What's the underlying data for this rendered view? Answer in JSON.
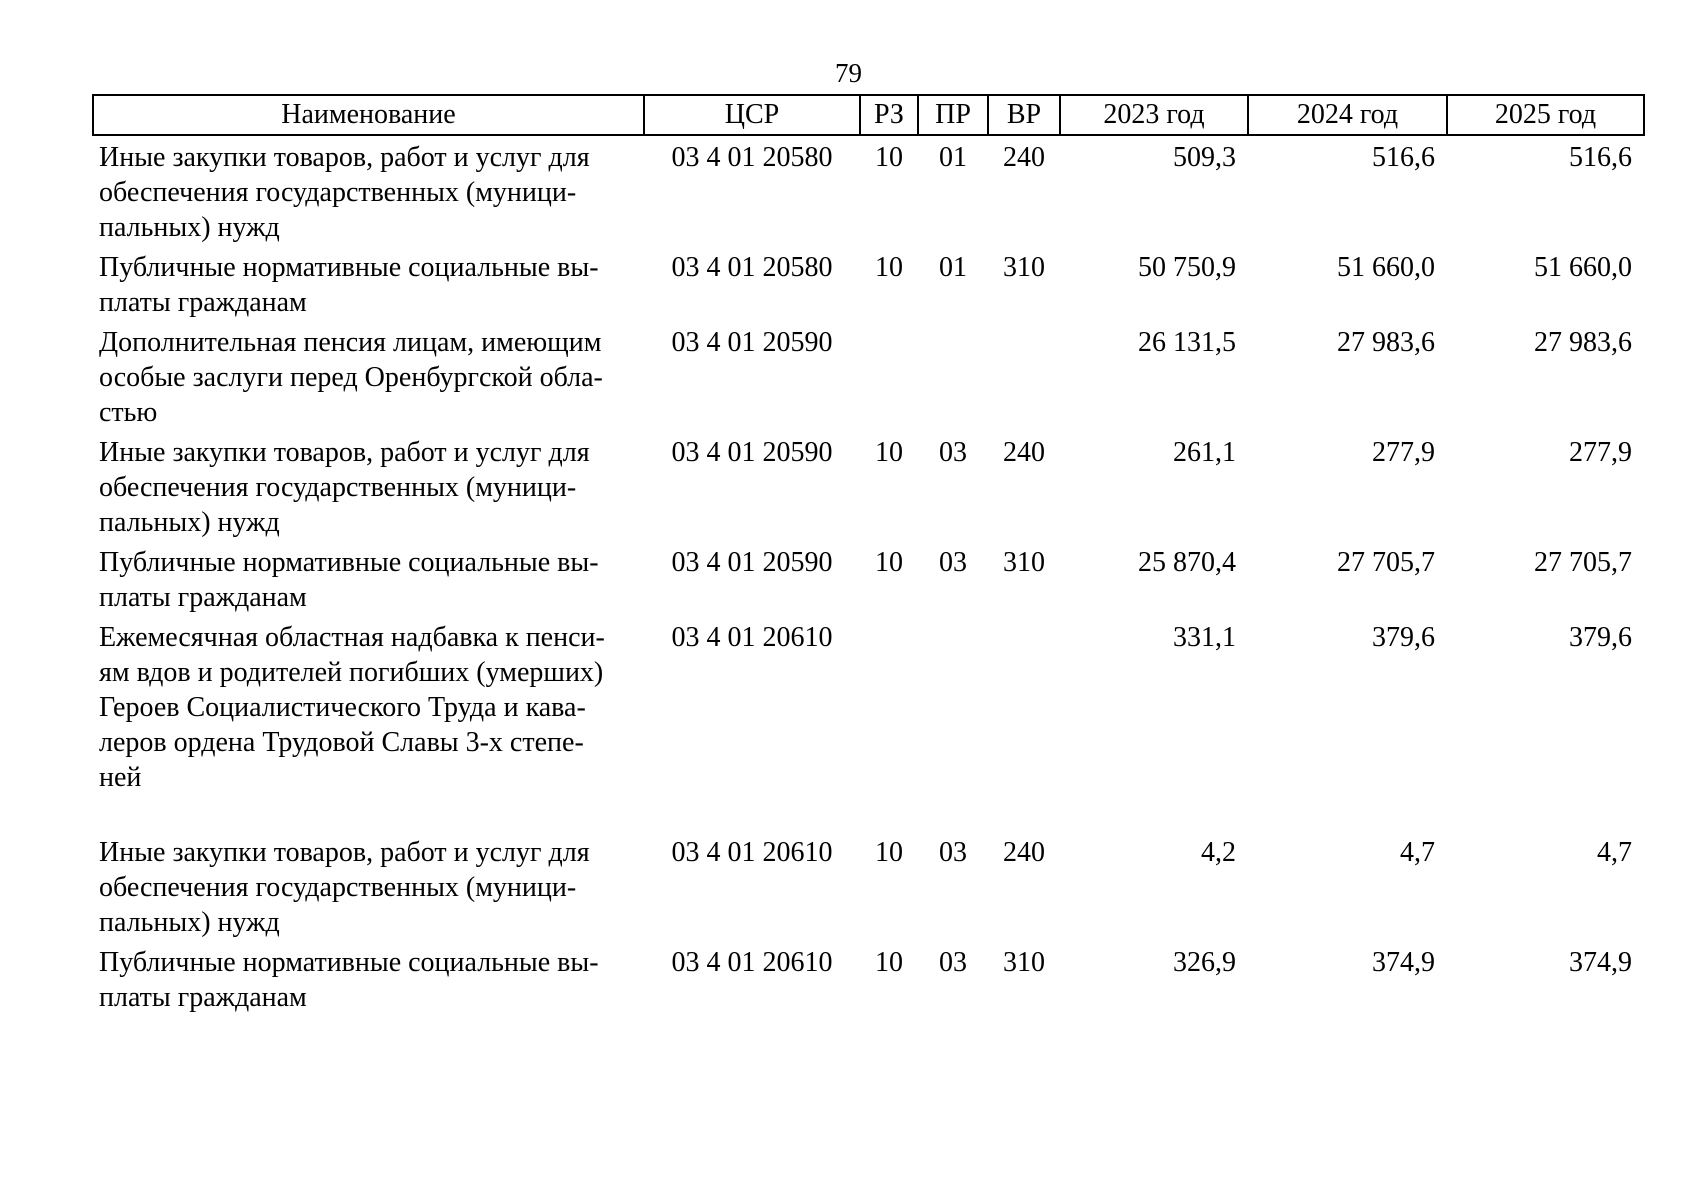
{
  "page": {
    "number": "79"
  },
  "table": {
    "headers": {
      "name": "Наименование",
      "csr": "ЦСР",
      "rz": "РЗ",
      "pr": "ПР",
      "vr": "ВР",
      "y2023": "2023 год",
      "y2024": "2024 год",
      "y2025": "2025 год"
    },
    "rows": [
      {
        "name": "Иные закупки товаров, работ и услуг для\nобеспечения государственных (муници-\nпальных) нужд",
        "csr": "03 4 01 20580",
        "rz": "10",
        "pr": "01",
        "vr": "240",
        "y2023": "509,3",
        "y2024": "516,6",
        "y2025": "516,6"
      },
      {
        "name": "Публичные нормативные социальные вы-\nплаты гражданам",
        "csr": "03 4 01 20580",
        "rz": "10",
        "pr": "01",
        "vr": "310",
        "y2023": "50 750,9",
        "y2024": "51 660,0",
        "y2025": "51 660,0"
      },
      {
        "name": "Дополнительная пенсия лицам, имеющим\nособые заслуги перед Оренбургской обла-\nстью",
        "csr": "03 4 01 20590",
        "rz": "",
        "pr": "",
        "vr": "",
        "y2023": "26 131,5",
        "y2024": "27 983,6",
        "y2025": "27 983,6"
      },
      {
        "name": "Иные закупки товаров, работ и услуг для\nобеспечения государственных (муници-\nпальных) нужд",
        "csr": "03 4 01 20590",
        "rz": "10",
        "pr": "03",
        "vr": "240",
        "y2023": "261,1",
        "y2024": "277,9",
        "y2025": "277,9"
      },
      {
        "name": "Публичные нормативные социальные вы-\nплаты гражданам",
        "csr": "03 4 01 20590",
        "rz": "10",
        "pr": "03",
        "vr": "310",
        "y2023": "25 870,4",
        "y2024": "27 705,7",
        "y2025": "27 705,7"
      },
      {
        "name": "Ежемесячная областная надбавка к пенси-\nям вдов и родителей погибших (умерших)\nГероев Социалистического Труда и кава-\nлеров ордена Трудовой Славы 3-х степе-\nней",
        "csr": "03 4 01 20610",
        "rz": "",
        "pr": "",
        "vr": "",
        "y2023": "331,1",
        "y2024": "379,6",
        "y2025": "379,6"
      },
      {
        "name": "Иные закупки товаров, работ и услуг для\nобеспечения государственных (муници-\nпальных) нужд",
        "csr": "03 4 01 20610",
        "rz": "10",
        "pr": "03",
        "vr": "240",
        "y2023": "4,2",
        "y2024": "4,7",
        "y2025": "4,7"
      },
      {
        "name": "Публичные нормативные социальные вы-\nплаты гражданам",
        "csr": "03 4 01 20610",
        "rz": "10",
        "pr": "03",
        "vr": "310",
        "y2023": "326,9",
        "y2024": "374,9",
        "y2025": "374,9"
      }
    ]
  }
}
